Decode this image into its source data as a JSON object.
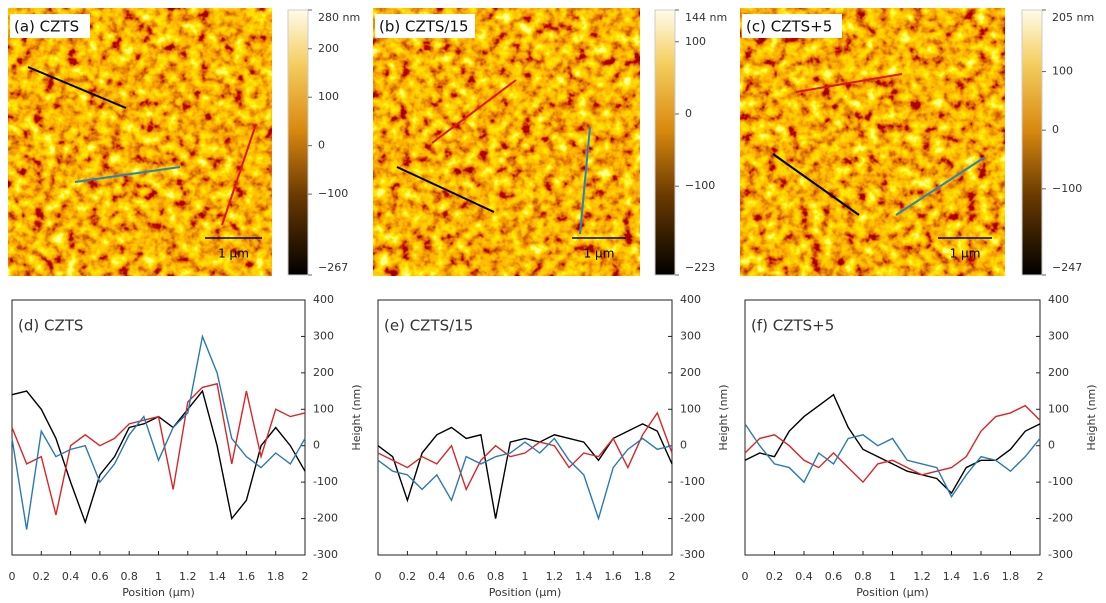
{
  "images": [
    {
      "label": "(a) CZTS",
      "scale_bar": "1 μm",
      "clim": [
        -267,
        280
      ],
      "ticks": [
        {
          "value": 280,
          "label": "280 nm"
        },
        200,
        100,
        0,
        {
          "value": -100,
          "label": "−100"
        },
        {
          "value": -267,
          "label": "−267"
        }
      ]
    },
    {
      "label": "(b) CZTS/15",
      "scale_bar": "1 μm",
      "clim": [
        -223,
        144
      ],
      "ticks": [
        {
          "value": 144,
          "label": "144 nm"
        },
        100,
        0,
        {
          "value": -100,
          "label": "−100"
        },
        {
          "value": -223,
          "label": "−223"
        }
      ]
    },
    {
      "label": "(c) CZTS+5",
      "scale_bar": "1 μm",
      "clim": [
        -247,
        205
      ],
      "ticks": [
        {
          "value": 205,
          "label": "205 nm"
        },
        100,
        0,
        {
          "value": -100,
          "label": "−100"
        },
        {
          "value": -247,
          "label": "−247"
        }
      ]
    }
  ],
  "chart_data": [
    {
      "type": "line",
      "title": "(d) CZTS",
      "xlabel": "Position (μm)",
      "ylabel": "Height (nm)",
      "x": [
        0,
        0.1,
        0.2,
        0.3,
        0.4,
        0.5,
        0.6,
        0.7,
        0.8,
        0.9,
        1,
        1.1,
        1.2,
        1.3,
        1.4,
        1.5,
        1.6,
        1.7,
        1.8,
        1.9,
        2
      ],
      "series": [
        {
          "color": "#000000",
          "values": [
            140,
            150,
            100,
            20,
            -100,
            -210,
            -80,
            -30,
            50,
            60,
            80,
            50,
            100,
            150,
            0,
            -200,
            -150,
            0,
            50,
            0,
            -70
          ]
        },
        {
          "color": "#d62728",
          "values": [
            50,
            -50,
            -30,
            -190,
            0,
            30,
            0,
            20,
            60,
            70,
            80,
            -120,
            120,
            160,
            170,
            -50,
            150,
            -30,
            100,
            80,
            90
          ]
        },
        {
          "color": "#2a7ab0",
          "values": [
            20,
            -230,
            40,
            -30,
            -10,
            0,
            -100,
            -50,
            30,
            80,
            -40,
            50,
            90,
            300,
            200,
            20,
            -30,
            -60,
            -20,
            -50,
            20
          ]
        }
      ],
      "xlim": [
        0,
        2
      ],
      "ylim": [
        -300,
        400
      ],
      "xticks": [
        0,
        0.2,
        0.4,
        0.6,
        0.8,
        1,
        1.2,
        1.4,
        1.6,
        1.8,
        2
      ],
      "yticks": [
        -300,
        -200,
        -100,
        0,
        100,
        200,
        300,
        400
      ]
    },
    {
      "type": "line",
      "title": "(e) CZTS/15",
      "xlabel": "Position (μm)",
      "ylabel": "Height (nm)",
      "x": [
        0,
        0.1,
        0.2,
        0.3,
        0.4,
        0.5,
        0.6,
        0.7,
        0.8,
        0.9,
        1,
        1.1,
        1.2,
        1.3,
        1.4,
        1.5,
        1.6,
        1.7,
        1.8,
        1.9,
        2
      ],
      "series": [
        {
          "color": "#000000",
          "values": [
            0,
            -30,
            -150,
            -20,
            30,
            50,
            20,
            30,
            -200,
            10,
            20,
            10,
            30,
            20,
            10,
            -40,
            20,
            40,
            60,
            40,
            -50
          ]
        },
        {
          "color": "#d62728",
          "values": [
            -20,
            -40,
            -60,
            -30,
            -50,
            0,
            -120,
            -40,
            0,
            -30,
            -20,
            10,
            0,
            -60,
            -20,
            -30,
            20,
            -60,
            30,
            90,
            -20
          ]
        },
        {
          "color": "#2a7ab0",
          "values": [
            -40,
            -70,
            -80,
            -120,
            -80,
            -150,
            -30,
            -50,
            -30,
            -20,
            10,
            -20,
            20,
            -40,
            -80,
            -200,
            -60,
            -10,
            20,
            -10,
            0
          ]
        }
      ],
      "xlim": [
        0,
        2
      ],
      "ylim": [
        -300,
        400
      ],
      "xticks": [
        0,
        0.2,
        0.4,
        0.6,
        0.8,
        1,
        1.2,
        1.4,
        1.6,
        1.8,
        2
      ],
      "yticks": [
        -300,
        -200,
        -100,
        0,
        100,
        200,
        300,
        400
      ]
    },
    {
      "type": "line",
      "title": "(f) CZTS+5",
      "xlabel": "Position (μm)",
      "ylabel": "Height (nm)",
      "x": [
        0,
        0.1,
        0.2,
        0.3,
        0.4,
        0.5,
        0.6,
        0.7,
        0.8,
        0.9,
        1,
        1.1,
        1.2,
        1.3,
        1.4,
        1.5,
        1.6,
        1.7,
        1.8,
        1.9,
        2
      ],
      "series": [
        {
          "color": "#000000",
          "values": [
            -40,
            -20,
            -30,
            40,
            80,
            110,
            140,
            50,
            -10,
            -30,
            -50,
            -70,
            -80,
            -90,
            -130,
            -60,
            -40,
            -40,
            -10,
            40,
            60
          ]
        },
        {
          "color": "#d62728",
          "values": [
            -20,
            20,
            30,
            0,
            -40,
            -60,
            -20,
            -60,
            -100,
            -50,
            -40,
            -60,
            -80,
            -70,
            -60,
            -30,
            40,
            80,
            90,
            110,
            70
          ]
        },
        {
          "color": "#2a7ab0",
          "values": [
            60,
            0,
            -50,
            -60,
            -100,
            -20,
            -50,
            20,
            30,
            0,
            20,
            -40,
            -50,
            -60,
            -140,
            -80,
            -30,
            -40,
            -70,
            -30,
            20
          ]
        }
      ],
      "xlim": [
        0,
        2
      ],
      "ylim": [
        -300,
        400
      ],
      "xticks": [
        0,
        0.2,
        0.4,
        0.6,
        0.8,
        1,
        1.2,
        1.4,
        1.6,
        1.8,
        2
      ],
      "yticks": [
        -300,
        -200,
        -100,
        0,
        100,
        200,
        300,
        400
      ]
    }
  ]
}
